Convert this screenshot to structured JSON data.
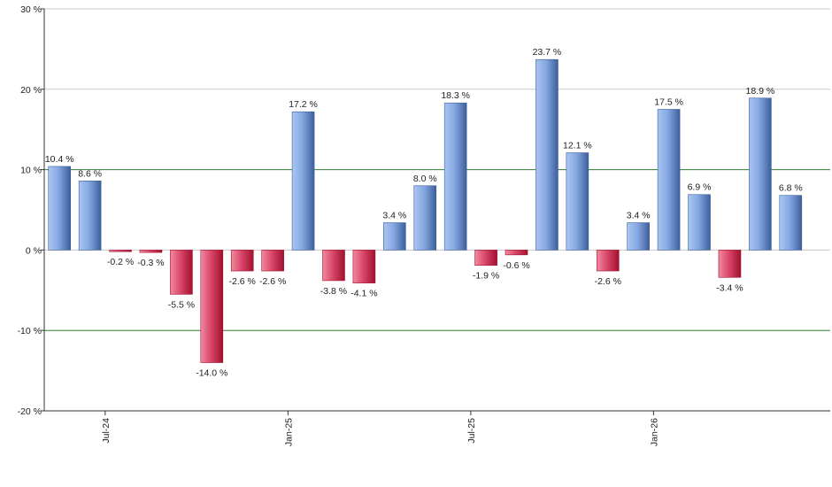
{
  "chart_data": {
    "type": "bar",
    "title": "",
    "xlabel": "",
    "ylabel": "",
    "ylim": [
      -20,
      30
    ],
    "y_ticks": [
      -20,
      -10,
      0,
      10,
      20,
      30
    ],
    "y_tick_labels": [
      "-20 %",
      "-10 %",
      "0 %",
      "10 %",
      "20 %",
      "30 %"
    ],
    "x_tick_labels": [
      "Jul-24",
      "Jan-25",
      "Jul-25",
      "Jan-26"
    ],
    "x_tick_after_bar": [
      1,
      7,
      13,
      19
    ],
    "values": [
      10.4,
      8.6,
      -0.2,
      -0.3,
      -5.5,
      -14.0,
      -2.6,
      -2.6,
      17.2,
      -3.8,
      -4.1,
      3.4,
      8.0,
      18.3,
      -1.9,
      -0.6,
      23.7,
      12.1,
      -2.6,
      3.4,
      17.5,
      6.9,
      -3.4,
      18.9,
      6.8
    ],
    "data_labels": [
      "10.4 %",
      "8.6 %",
      "-0.2 %",
      "-0.3 %",
      "-5.5 %",
      "-14.0 %",
      "-2.6 %",
      "-2.6 %",
      "17.2 %",
      "-3.8 %",
      "-4.1 %",
      "3.4 %",
      "8.0 %",
      "18.3 %",
      "-1.9 %",
      "-0.6 %",
      "23.7 %",
      "12.1 %",
      "-2.6 %",
      "3.4 %",
      "17.5 %",
      "6.9 %",
      "-3.4 %",
      "18.9 %",
      "6.8 %"
    ],
    "reference_lines": [
      10,
      -10
    ],
    "grid": true,
    "colors": {
      "positive_light": "#a9c6f2",
      "positive_dark": "#3c5f9c",
      "negative_light": "#f08aa0",
      "negative_dark": "#a3102f",
      "reference_line": "#2e7d32",
      "grid": "#c8c8c8",
      "axis": "#333333"
    }
  }
}
